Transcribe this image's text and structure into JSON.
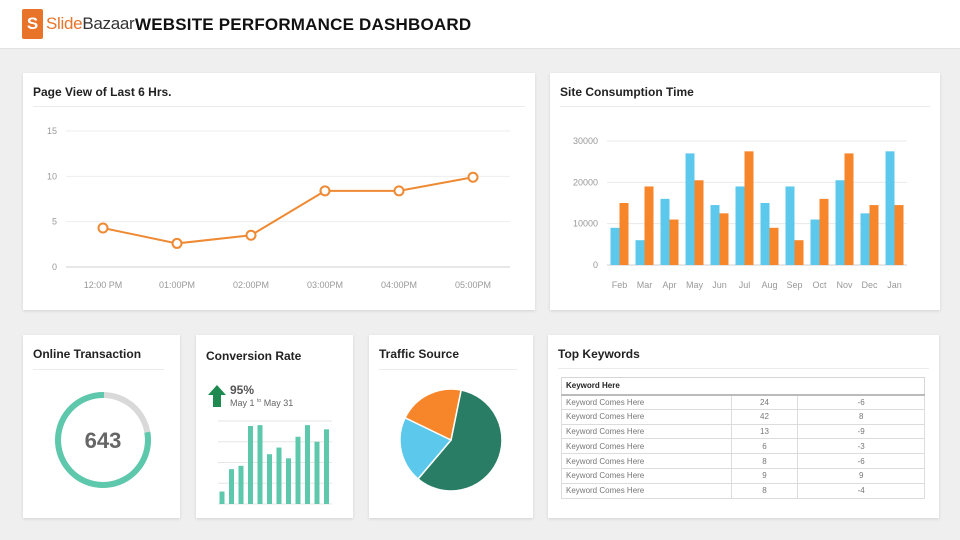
{
  "header": {
    "logo_letter": "S",
    "logo_slide": "Slide",
    "logo_bazaar": "Bazaar",
    "title": "WEBSITE PERFORMANCE DASHBOARD"
  },
  "page_view": {
    "title": "Page View of Last 6 Hrs.",
    "chart_data": {
      "type": "line",
      "categories": [
        "12:00 PM",
        "01:00PM",
        "02:00PM",
        "03:00PM",
        "04:00PM",
        "05:00PM"
      ],
      "values": [
        4.3,
        2.6,
        3.5,
        8.4,
        8.4,
        9.9
      ],
      "yticks": [
        "0",
        "5",
        "10",
        "15"
      ],
      "ylim": [
        0,
        15
      ],
      "color": "#ee8a33"
    }
  },
  "site_consumption": {
    "title": "Site Consumption  Time",
    "chart_data": {
      "type": "bar",
      "categories": [
        "Feb",
        "Mar",
        "Apr",
        "May",
        "Jun",
        "Jul",
        "Aug",
        "Sep",
        "Oct",
        "Nov",
        "Dec",
        "Jan"
      ],
      "series": [
        {
          "values": [
            9000,
            6000,
            16000,
            27000,
            14500,
            19000,
            15000,
            19000,
            11000,
            20500,
            12500,
            27500
          ],
          "color": "#5bc8ec"
        },
        {
          "values": [
            15000,
            19000,
            11000,
            20500,
            12500,
            27500,
            9000,
            6000,
            16000,
            27000,
            14500,
            14500
          ],
          "color": "#f7862b"
        }
      ],
      "yticks": [
        "0",
        "10000",
        "20000",
        "30000"
      ],
      "ylim": [
        0,
        30000
      ]
    }
  },
  "online_transaction": {
    "title": "Online Transaction",
    "value": "643",
    "progress": 0.78,
    "ring_color": "#5ec8ad",
    "track_color": "#d9d9d9"
  },
  "conversion_rate": {
    "title": "Conversion Rate",
    "percent": "95%",
    "range_from": "May 1",
    "range_sup": "to",
    "range_to": "May 31",
    "arrow_color": "#1f8a4f",
    "chart_data": {
      "type": "bar",
      "values": [
        0.15,
        0.42,
        0.46,
        0.94,
        0.95,
        0.6,
        0.68,
        0.55,
        0.81,
        0.95,
        0.75,
        0.9
      ],
      "color": "#5ec8ad"
    }
  },
  "traffic_source": {
    "title": "Traffic Source",
    "chart_data": {
      "type": "pie",
      "values": [
        58,
        21,
        21
      ],
      "colors": [
        "#287d64",
        "#5bc8ec",
        "#f7862b"
      ]
    }
  },
  "top_keywords": {
    "title": "Top Keywords",
    "header": "Keyword Here",
    "rows": [
      {
        "keyword": "Keyword Comes Here",
        "value": "24",
        "change": "-6"
      },
      {
        "keyword": "Keyword Comes Here",
        "value": "42",
        "change": "8"
      },
      {
        "keyword": "Keyword Comes Here",
        "value": "13",
        "change": "-9"
      },
      {
        "keyword": "Keyword Comes Here",
        "value": "6",
        "change": "-3"
      },
      {
        "keyword": "Keyword Comes Here",
        "value": "8",
        "change": "-6"
      },
      {
        "keyword": "Keyword Comes Here",
        "value": "9",
        "change": "9"
      },
      {
        "keyword": "Keyword Comes Here",
        "value": "8",
        "change": "-4"
      }
    ]
  }
}
